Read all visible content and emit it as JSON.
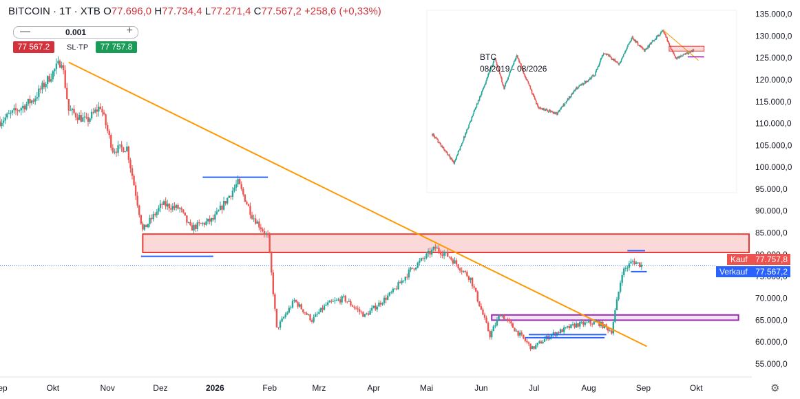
{
  "header": {
    "symbol": "BITCOIN · 1T · XTB",
    "o_label": "O",
    "o_value": "77.696,0",
    "h_label": "H",
    "h_value": "77.734,4",
    "l_label": "L",
    "l_value": "77.271,4",
    "c_label": "C",
    "c_value": "77.567,2",
    "change": "+258,6 (+0,33%)"
  },
  "trade_panel": {
    "qty_minus": "—",
    "qty_value": "0.001",
    "qty_plus": "+",
    "sell_price": "77 567.2",
    "sltp_label": "SL·TP",
    "buy_price": "77 757.8"
  },
  "price_tags": {
    "buy_label": "Kauf",
    "buy_value": "77.757,8",
    "sell_label": "Verkauf",
    "sell_value": "77.567,2"
  },
  "inset": {
    "title": "BTC",
    "subtitle": "08/2019 - 08/2026"
  },
  "icons": {
    "settings": "gear-icon"
  },
  "colors": {
    "up": "#26a69a",
    "down": "#ef5350",
    "trend": "#ff9800",
    "support": "#2962ff",
    "resistance_zone": "#e53935",
    "consolidation_zone": "#9c27b0",
    "current_line": "#2962ff"
  },
  "chart_data": {
    "type": "candlestick",
    "instrument": "BITCOIN",
    "timeframe": "1T",
    "ylim": [
      52000,
      137000
    ],
    "y_ticks": [
      55000,
      60000,
      65000,
      70000,
      75000,
      80000,
      85000,
      90000,
      95000,
      100000,
      105000,
      110000,
      115000,
      120000,
      125000,
      130000,
      135000
    ],
    "y_tick_labels": [
      "55.000,0",
      "60.000,0",
      "65.000,0",
      "70.000,0",
      "75.000,0",
      "80.000,0",
      "85.000,0",
      "90.000,0",
      "95.000,0",
      "100.000,0",
      "105.000,0",
      "110.000,0",
      "115.000,0",
      "120.000,0",
      "125.000,0",
      "130.000,0",
      "135.000,0"
    ],
    "x_range": [
      "2025-09-01",
      "2026-10-31"
    ],
    "x_ticks": [
      {
        "date": "2025-09-01",
        "label": "Sep"
      },
      {
        "date": "2025-10-01",
        "label": "Okt"
      },
      {
        "date": "2025-11-01",
        "label": "Nov"
      },
      {
        "date": "2025-12-01",
        "label": "Dez"
      },
      {
        "date": "2026-01-01",
        "label": "2026"
      },
      {
        "date": "2026-02-01",
        "label": "Feb"
      },
      {
        "date": "2026-03-01",
        "label": "Mrz"
      },
      {
        "date": "2026-04-01",
        "label": "Apr"
      },
      {
        "date": "2026-05-01",
        "label": "Mai"
      },
      {
        "date": "2026-06-01",
        "label": "Jun"
      },
      {
        "date": "2026-07-01",
        "label": "Jul"
      },
      {
        "date": "2026-08-01",
        "label": "Aug"
      },
      {
        "date": "2026-09-01",
        "label": "Sep"
      },
      {
        "date": "2026-10-01",
        "label": "Okt"
      }
    ],
    "price_path": [
      [
        "2025-09-01",
        110500
      ],
      [
        "2025-09-20",
        115500
      ],
      [
        "2025-10-06",
        124500
      ],
      [
        "2025-10-10",
        113000
      ],
      [
        "2025-10-20",
        110500
      ],
      [
        "2025-10-28",
        114000
      ],
      [
        "2025-11-04",
        104000
      ],
      [
        "2025-11-12",
        104500
      ],
      [
        "2025-11-21",
        85500
      ],
      [
        "2025-12-02",
        91500
      ],
      [
        "2025-12-12",
        90500
      ],
      [
        "2025-12-18",
        86000
      ],
      [
        "2025-12-31",
        88000
      ],
      [
        "2026-01-14",
        96500
      ],
      [
        "2026-01-22",
        89000
      ],
      [
        "2026-01-31",
        84000
      ],
      [
        "2026-02-05",
        63000
      ],
      [
        "2026-02-15",
        69500
      ],
      [
        "2026-02-25",
        65000
      ],
      [
        "2026-03-05",
        68500
      ],
      [
        "2026-03-15",
        70000
      ],
      [
        "2026-03-27",
        66000
      ],
      [
        "2026-04-12",
        71500
      ],
      [
        "2026-04-22",
        76500
      ],
      [
        "2026-05-06",
        81500
      ],
      [
        "2026-05-14",
        79500
      ],
      [
        "2026-05-26",
        74500
      ],
      [
        "2026-06-06",
        61500
      ],
      [
        "2026-06-12",
        66500
      ],
      [
        "2026-06-30",
        58500
      ],
      [
        "2026-07-10",
        61500
      ],
      [
        "2026-07-25",
        64000
      ],
      [
        "2026-08-06",
        64500
      ],
      [
        "2026-08-14",
        62500
      ],
      [
        "2026-08-20",
        76000
      ],
      [
        "2026-08-26",
        78500
      ],
      [
        "2026-08-31",
        77600
      ]
    ],
    "current_price": 77567.2,
    "buy_price": 77757.8,
    "annotations": [
      {
        "type": "trendline",
        "from": [
          "2025-10-10",
          124000
        ],
        "to": [
          "2026-09-03",
          59000
        ]
      },
      {
        "type": "zone",
        "from": "2025-11-21",
        "to": "2026-10-31",
        "y1": 80500,
        "y2": 84700
      },
      {
        "type": "zone",
        "from": "2026-06-07",
        "to": "2026-10-25",
        "y1": 65000,
        "y2": 66200
      },
      {
        "type": "hline",
        "from": "2025-11-20",
        "to": "2025-12-31",
        "y": 79600
      },
      {
        "type": "hline",
        "from": "2025-12-25",
        "to": "2026-01-31",
        "y": 97700
      },
      {
        "type": "hline",
        "from": "2026-06-26",
        "to": "2026-08-10",
        "y": 61000
      },
      {
        "type": "hline",
        "from": "2026-06-28",
        "to": "2026-08-11",
        "y": 61700
      },
      {
        "type": "hline",
        "from": "2026-08-23",
        "to": "2026-09-02",
        "y": 80900
      },
      {
        "type": "hline",
        "from": "2026-08-25",
        "to": "2026-09-03",
        "y": 76100
      }
    ],
    "inset": {
      "title": "BTC",
      "period": "08/2019 - 08/2026",
      "path": [
        [
          "2019-08",
          10000
        ],
        [
          "2020-03",
          5000
        ],
        [
          "2020-12",
          29000
        ],
        [
          "2021-04",
          63000
        ],
        [
          "2021-07",
          31000
        ],
        [
          "2021-11",
          68000
        ],
        [
          "2022-06",
          19000
        ],
        [
          "2022-12",
          16500
        ],
        [
          "2023-06",
          30000
        ],
        [
          "2023-12",
          42000
        ],
        [
          "2024-03",
          73000
        ],
        [
          "2024-08",
          55000
        ],
        [
          "2024-12",
          105000
        ],
        [
          "2025-04",
          76000
        ],
        [
          "2025-10",
          124000
        ],
        [
          "2026-02",
          63000
        ],
        [
          "2026-08",
          77000
        ]
      ]
    }
  }
}
